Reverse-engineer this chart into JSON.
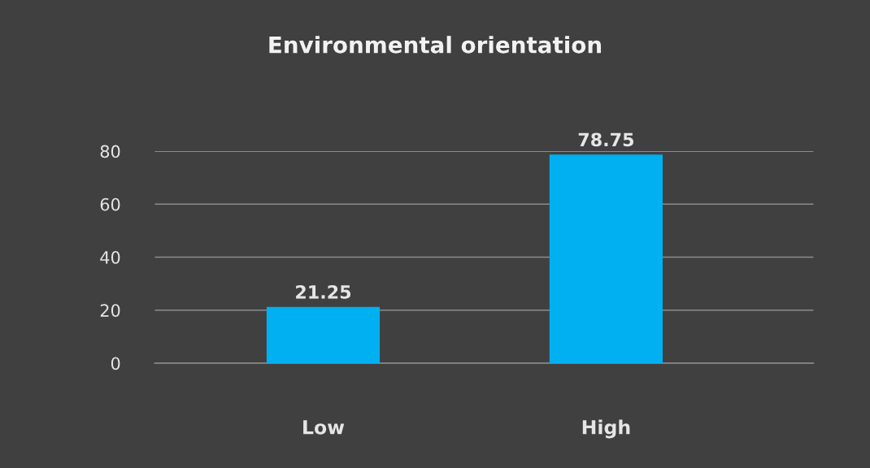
{
  "chart_data": {
    "type": "bar",
    "title": "Environmental orientation",
    "categories": [
      "Low",
      "High"
    ],
    "values": [
      21.25,
      78.75
    ],
    "color": "#00b0f0",
    "ylim": [
      0,
      80
    ],
    "yticks": [
      0,
      20,
      40,
      60,
      80
    ],
    "grid": "y",
    "data_labels": true
  }
}
